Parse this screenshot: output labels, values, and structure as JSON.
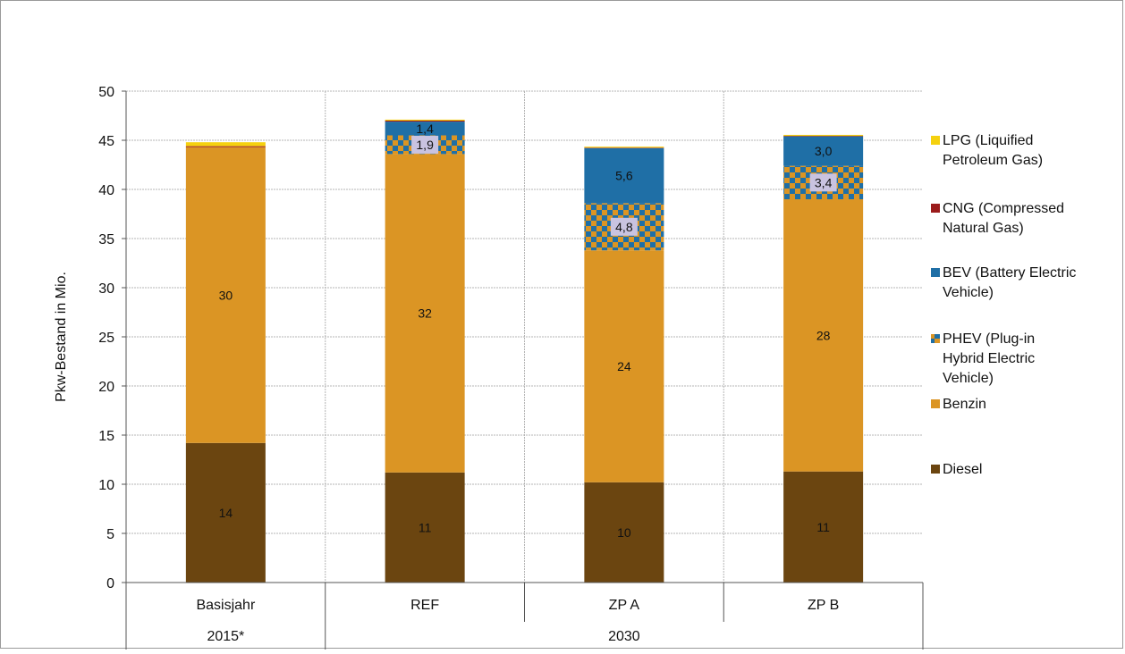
{
  "chart_data": {
    "type": "bar",
    "stacked": true,
    "ylabel": "Pkw-Bestand in Mio.",
    "ylim": [
      0,
      50
    ],
    "yticks": [
      0,
      5,
      10,
      15,
      20,
      25,
      30,
      35,
      40,
      45,
      50
    ],
    "grid": true,
    "legend_position": "right",
    "categories": [
      "Basisjahr",
      "REF",
      "ZP A",
      "ZP B"
    ],
    "category_groups": [
      {
        "label": "2015*",
        "categories": [
          "Basisjahr"
        ]
      },
      {
        "label": "2030",
        "categories": [
          "REF",
          "ZP A",
          "ZP B"
        ]
      }
    ],
    "series": [
      {
        "name": "Diesel",
        "color": "#6b4510",
        "pattern": false,
        "values": [
          14.2,
          11.2,
          10.2,
          11.3
        ],
        "labels": [
          "14",
          "11",
          "10",
          "11"
        ]
      },
      {
        "name": "Benzin",
        "color": "#db9524",
        "pattern": false,
        "values": [
          30.1,
          32.4,
          23.6,
          27.7
        ],
        "labels": [
          "30",
          "32",
          "24",
          "28"
        ]
      },
      {
        "name": "PHEV (Plug-in Hybrid Electric Vehicle)",
        "color": "#db9524",
        "pattern_color": "#1f6fa6",
        "pattern": true,
        "values": [
          0.0,
          1.9,
          4.8,
          3.4
        ],
        "labels": [
          "",
          "1,9",
          "4,8",
          "3,4"
        ]
      },
      {
        "name": "BEV (Battery Electric Vehicle)",
        "color": "#1f6fa6",
        "pattern": false,
        "values": [
          0.0,
          1.4,
          5.6,
          3.0
        ],
        "labels": [
          "",
          "1,4",
          "5,6",
          "3,0"
        ]
      },
      {
        "name": "CNG (Compressed Natural Gas)",
        "color": "#9b1b1b",
        "pattern": false,
        "values": [
          0.1,
          0.1,
          0.05,
          0.05
        ],
        "labels": [
          "",
          "",
          "",
          ""
        ]
      },
      {
        "name": "LPG (Liquified Petroleum Gas)",
        "color": "#f5d10f",
        "pattern": false,
        "values": [
          0.4,
          0.1,
          0.1,
          0.1
        ],
        "labels": [
          "",
          "",
          "",
          ""
        ]
      }
    ],
    "legend_order": [
      "LPG (Liquified Petroleum Gas)",
      "CNG (Compressed Natural Gas)",
      "BEV (Battery Electric Vehicle)",
      "PHEV (Plug-in Hybrid Electric Vehicle)",
      "Benzin",
      "Diesel"
    ],
    "legend_lines": {
      "LPG (Liquified Petroleum Gas)": [
        "LPG (Liquified",
        "Petroleum Gas)"
      ],
      "CNG (Compressed Natural Gas)": [
        "CNG (Compressed",
        "Natural Gas)"
      ],
      "BEV (Battery Electric Vehicle)": [
        "BEV (Battery Electric",
        "Vehicle)"
      ],
      "PHEV (Plug-in Hybrid Electric Vehicle)": [
        "PHEV (Plug-in",
        "Hybrid Electric",
        "Vehicle)"
      ],
      "Benzin": [
        "Benzin"
      ],
      "Diesel": [
        "Diesel"
      ]
    }
  }
}
